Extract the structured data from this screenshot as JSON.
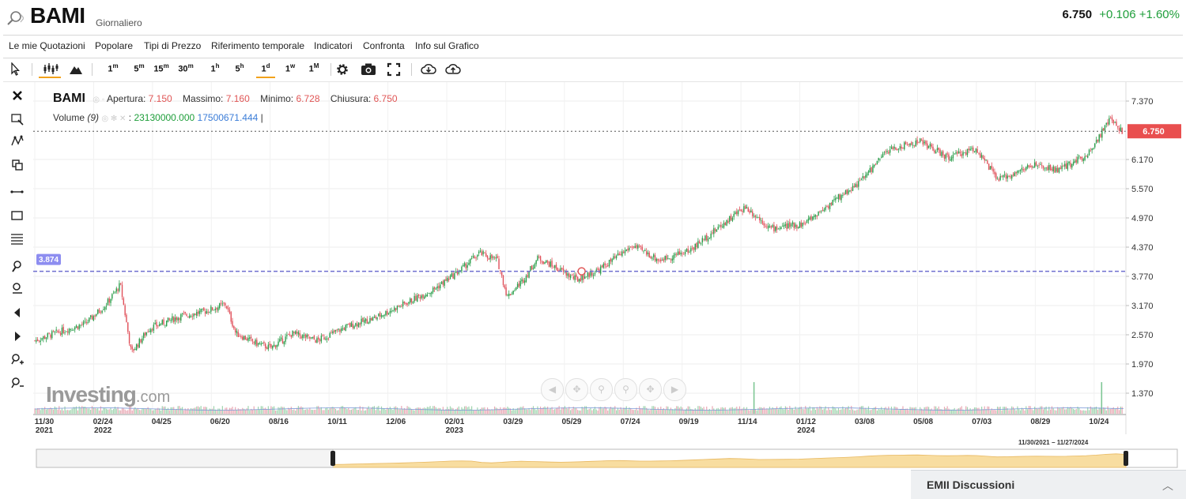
{
  "header": {
    "symbol": "BAMI",
    "period": "Giornaliero",
    "price": "6.750",
    "change": "+0.106 +1.60%"
  },
  "menu": [
    "Le mie Quotazioni",
    "Popolare",
    "Tipi di Prezzo",
    "Riferimento temporale",
    "Indicatori",
    "Confronta",
    "Info sul Grafico"
  ],
  "toolbar": {
    "intervals": [
      {
        "n": "1",
        "s": "m"
      },
      {
        "n": "5",
        "s": "m"
      },
      {
        "n": "15",
        "s": "m"
      },
      {
        "n": "30",
        "s": "m"
      },
      {
        "n": "1",
        "s": "h"
      },
      {
        "n": "5",
        "s": "h"
      },
      {
        "n": "1",
        "s": "d"
      },
      {
        "n": "1",
        "s": "w"
      },
      {
        "n": "1",
        "s": "M"
      }
    ],
    "active_interval": "1d",
    "icons": [
      "cursor-icon",
      "candles-icon",
      "mountain-icon",
      "settings-icon",
      "camera-icon",
      "fullscreen-icon",
      "download-icon",
      "upload-icon"
    ]
  },
  "left_tools": [
    "close-icon",
    "select-zoom-icon",
    "pattern-icon",
    "clone-icon",
    "line-tool-icon",
    "rectangle-tool-icon",
    "fib-tool-icon",
    "magnet-icon",
    "draw-icon",
    "arrow-left-icon",
    "arrow-right-icon",
    "zoom-in-icon",
    "zoom-out-icon"
  ],
  "legend": {
    "symbol": "BAMI",
    "open_label": "Apertura:",
    "open": "7.150",
    "high_label": "Massimo:",
    "high": "7.160",
    "low_label": "Minimo:",
    "low": "6.728",
    "close_label": "Chiusura:",
    "close": "6.750",
    "volume_label": "Volume",
    "volume_period": "(9)",
    "volume_value": "23130000.000",
    "volume_ma": "17500671.444"
  },
  "logo": {
    "main": "Investing",
    "suffix": ".com"
  },
  "discussion": {
    "title": "EMII Discussioni"
  },
  "range_label": "11/30/2021 − 11/27/2024",
  "chart_data": {
    "type": "candlestick",
    "price_ticks": [
      "7.370",
      "6.170",
      "5.570",
      "4.970",
      "4.370",
      "3.770",
      "3.170",
      "2.570",
      "1.970",
      "1.370"
    ],
    "yrange": [
      1.37,
      7.37
    ],
    "last_price": 6.75,
    "horizontal_line": 3.874,
    "x_ticks": [
      {
        "label": "11/30",
        "year": "2021"
      },
      {
        "label": "02/24",
        "year": "2022"
      },
      {
        "label": "04/25",
        "year": ""
      },
      {
        "label": "06/20",
        "year": ""
      },
      {
        "label": "08/16",
        "year": ""
      },
      {
        "label": "10/11",
        "year": ""
      },
      {
        "label": "12/06",
        "year": ""
      },
      {
        "label": "02/01",
        "year": "2023"
      },
      {
        "label": "03/29",
        "year": ""
      },
      {
        "label": "05/29",
        "year": ""
      },
      {
        "label": "07/24",
        "year": ""
      },
      {
        "label": "09/19",
        "year": ""
      },
      {
        "label": "11/14",
        "year": ""
      },
      {
        "label": "01/12",
        "year": "2024"
      },
      {
        "label": "03/08",
        "year": ""
      },
      {
        "label": "05/08",
        "year": ""
      },
      {
        "label": "07/03",
        "year": ""
      },
      {
        "label": "08/29",
        "year": ""
      },
      {
        "label": "10/24",
        "year": ""
      }
    ],
    "close_path": [
      {
        "x": "11/30/2021",
        "y": 2.45
      },
      {
        "x": "12/20/2021",
        "y": 2.6
      },
      {
        "x": "01/20/2022",
        "y": 2.8
      },
      {
        "x": "02/10/2022",
        "y": 3.2
      },
      {
        "x": "02/24/2022",
        "y": 3.6
      },
      {
        "x": "03/07/2022",
        "y": 2.2
      },
      {
        "x": "03/25/2022",
        "y": 2.7
      },
      {
        "x": "04/25/2022",
        "y": 2.95
      },
      {
        "x": "05/20/2022",
        "y": 3.05
      },
      {
        "x": "06/10/2022",
        "y": 3.2
      },
      {
        "x": "06/20/2022",
        "y": 2.6
      },
      {
        "x": "07/10/2022",
        "y": 2.4
      },
      {
        "x": "07/25/2022",
        "y": 2.3
      },
      {
        "x": "08/16/2022",
        "y": 2.6
      },
      {
        "x": "09/10/2022",
        "y": 2.45
      },
      {
        "x": "10/11/2022",
        "y": 2.75
      },
      {
        "x": "11/05/2022",
        "y": 2.9
      },
      {
        "x": "12/06/2022",
        "y": 3.2
      },
      {
        "x": "01/05/2023",
        "y": 3.5
      },
      {
        "x": "02/01/2023",
        "y": 3.9
      },
      {
        "x": "02/20/2023",
        "y": 4.25
      },
      {
        "x": "03/10/2023",
        "y": 4.1
      },
      {
        "x": "03/20/2023",
        "y": 3.35
      },
      {
        "x": "04/05/2023",
        "y": 3.7
      },
      {
        "x": "04/20/2023",
        "y": 4.15
      },
      {
        "x": "05/29/2023",
        "y": 3.7
      },
      {
        "x": "06/20/2023",
        "y": 3.9
      },
      {
        "x": "07/24/2023",
        "y": 4.4
      },
      {
        "x": "08/20/2023",
        "y": 4.1
      },
      {
        "x": "09/19/2023",
        "y": 4.3
      },
      {
        "x": "10/20/2023",
        "y": 4.8
      },
      {
        "x": "11/14/2023",
        "y": 5.2
      },
      {
        "x": "12/10/2023",
        "y": 4.75
      },
      {
        "x": "01/12/2024",
        "y": 4.85
      },
      {
        "x": "02/10/2024",
        "y": 5.3
      },
      {
        "x": "03/08/2024",
        "y": 5.7
      },
      {
        "x": "04/05/2024",
        "y": 6.35
      },
      {
        "x": "05/08/2024",
        "y": 6.55
      },
      {
        "x": "06/05/2024",
        "y": 6.2
      },
      {
        "x": "07/03/2024",
        "y": 6.4
      },
      {
        "x": "07/25/2024",
        "y": 5.75
      },
      {
        "x": "08/29/2024",
        "y": 6.05
      },
      {
        "x": "09/25/2024",
        "y": 5.95
      },
      {
        "x": "10/24/2024",
        "y": 6.3
      },
      {
        "x": "11/15/2024",
        "y": 7.0
      },
      {
        "x": "11/27/2024",
        "y": 6.75
      }
    ],
    "volume_spike_dates": [
      "11/22/2023",
      "11/05/2024"
    ]
  }
}
